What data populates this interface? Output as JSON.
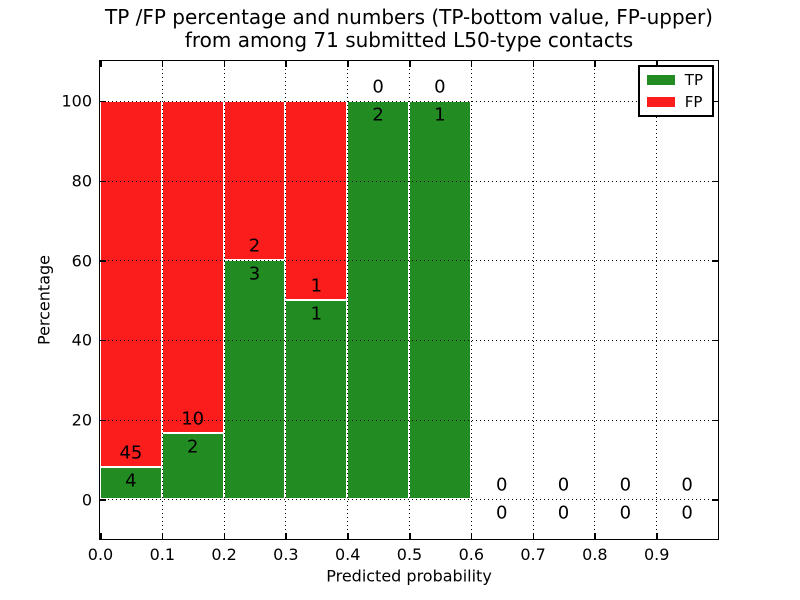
{
  "title": {
    "line1": "TP /FP percentage and numbers (TP-bottom value, FP-upper)",
    "line2": "from among 71 submitted L50-type contacts"
  },
  "axes": {
    "xlabel": "Predicted probability",
    "ylabel": "Percentage",
    "x_tick_values": [
      0.0,
      0.1,
      0.2,
      0.3,
      0.4,
      0.5,
      0.6,
      0.7,
      0.8,
      0.9
    ],
    "x_tick_labels": [
      "0.0",
      "0.1",
      "0.2",
      "0.3",
      "0.4",
      "0.5",
      "0.6",
      "0.7",
      "0.8",
      "0.9"
    ],
    "y_tick_values": [
      0,
      20,
      40,
      60,
      80,
      100
    ],
    "y_tick_labels": [
      "0",
      "20",
      "40",
      "60",
      "80",
      "100"
    ]
  },
  "legend": {
    "items": [
      {
        "label": "TP",
        "color": "#228b22"
      },
      {
        "label": "FP",
        "color": "#fb1c1c"
      }
    ]
  },
  "chart_data": {
    "type": "bar",
    "stacked": true,
    "title": "TP /FP percentage and numbers (TP-bottom value, FP-upper) from among 71 submitted L50-type contacts",
    "xlabel": "Predicted probability",
    "ylabel": "Percentage",
    "xlim": [
      0.0,
      1.0
    ],
    "ylim": [
      -10,
      110
    ],
    "grid": true,
    "legend_position": "upper right",
    "total_contacts": 71,
    "bin_width": 0.1,
    "colors": {
      "tp": "#228b22",
      "fp": "#fb1c1c"
    },
    "bins": [
      {
        "x0": 0.0,
        "x1": 0.1,
        "tp": 4,
        "fp": 45,
        "tp_pct": 8.2,
        "fp_pct": 91.8
      },
      {
        "x0": 0.1,
        "x1": 0.2,
        "tp": 2,
        "fp": 10,
        "tp_pct": 16.7,
        "fp_pct": 83.3
      },
      {
        "x0": 0.2,
        "x1": 0.3,
        "tp": 3,
        "fp": 2,
        "tp_pct": 60.0,
        "fp_pct": 40.0
      },
      {
        "x0": 0.3,
        "x1": 0.4,
        "tp": 1,
        "fp": 1,
        "tp_pct": 50.0,
        "fp_pct": 50.0
      },
      {
        "x0": 0.4,
        "x1": 0.5,
        "tp": 2,
        "fp": 0,
        "tp_pct": 100.0,
        "fp_pct": 0.0
      },
      {
        "x0": 0.5,
        "x1": 0.6,
        "tp": 1,
        "fp": 0,
        "tp_pct": 100.0,
        "fp_pct": 0.0
      },
      {
        "x0": 0.6,
        "x1": 0.7,
        "tp": 0,
        "fp": 0,
        "tp_pct": 0.0,
        "fp_pct": 0.0
      },
      {
        "x0": 0.7,
        "x1": 0.8,
        "tp": 0,
        "fp": 0,
        "tp_pct": 0.0,
        "fp_pct": 0.0
      },
      {
        "x0": 0.8,
        "x1": 0.9,
        "tp": 0,
        "fp": 0,
        "tp_pct": 0.0,
        "fp_pct": 0.0
      },
      {
        "x0": 0.9,
        "x1": 1.0,
        "tp": 0,
        "fp": 0,
        "tp_pct": 0.0,
        "fp_pct": 0.0
      }
    ]
  }
}
